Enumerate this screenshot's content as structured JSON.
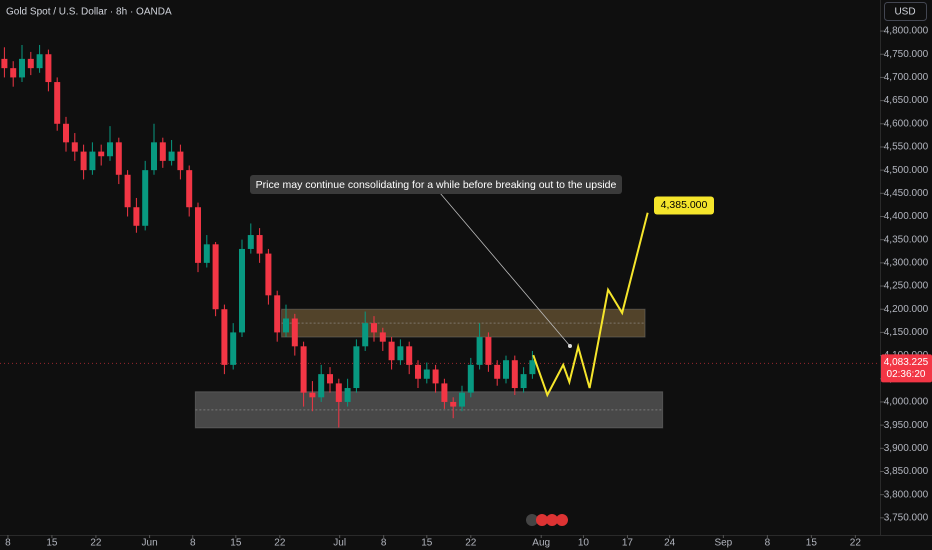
{
  "chart_data": {
    "type": "candlestick",
    "title": "Gold Spot / U.S. Dollar · 8h · OANDA",
    "currency": "USD",
    "xlim": [
      0,
      100
    ],
    "ylim": [
      3713,
      4867
    ],
    "xticks": [
      {
        "value": 0.9,
        "label": "8"
      },
      {
        "value": 5.9,
        "label": "15"
      },
      {
        "value": 10.9,
        "label": "22"
      },
      {
        "value": 17,
        "label": "Jun"
      },
      {
        "value": 21.9,
        "label": "8"
      },
      {
        "value": 26.8,
        "label": "15"
      },
      {
        "value": 31.8,
        "label": "22"
      },
      {
        "value": 38.6,
        "label": "Jul"
      },
      {
        "value": 43.6,
        "label": "8"
      },
      {
        "value": 48.5,
        "label": "15"
      },
      {
        "value": 53.5,
        "label": "22"
      },
      {
        "value": 61.5,
        "label": "Aug"
      },
      {
        "value": 66.3,
        "label": "10"
      },
      {
        "value": 71.3,
        "label": "17"
      },
      {
        "value": 76.1,
        "label": "24"
      },
      {
        "value": 82.2,
        "label": "Sep"
      },
      {
        "value": 87.2,
        "label": "8"
      },
      {
        "value": 92.2,
        "label": "15"
      },
      {
        "value": 97.2,
        "label": "22"
      }
    ],
    "yticks": [
      {
        "value": 3750,
        "label": "3,750.000"
      },
      {
        "value": 3800,
        "label": "3,800.000"
      },
      {
        "value": 3850,
        "label": "3,850.000"
      },
      {
        "value": 3900,
        "label": "3,900.000"
      },
      {
        "value": 3950,
        "label": "3,950.000"
      },
      {
        "value": 4000,
        "label": "4,000.000"
      },
      {
        "value": 4050,
        "label": "4,050.000"
      },
      {
        "value": 4100,
        "label": "4,100.000"
      },
      {
        "value": 4150,
        "label": "4,150.000"
      },
      {
        "value": 4200,
        "label": "4,200.000"
      },
      {
        "value": 4250,
        "label": "4,250.000"
      },
      {
        "value": 4300,
        "label": "4,300.000"
      },
      {
        "value": 4350,
        "label": "4,350.000"
      },
      {
        "value": 4400,
        "label": "4,400.000"
      },
      {
        "value": 4450,
        "label": "4,450.000"
      },
      {
        "value": 4500,
        "label": "4,500.000"
      },
      {
        "value": 4550,
        "label": "4,550.000"
      },
      {
        "value": 4600,
        "label": "4,600.000"
      },
      {
        "value": 4650,
        "label": "4,650.000"
      },
      {
        "value": 4700,
        "label": "4,700.000"
      },
      {
        "value": 4750,
        "label": "4,750.000"
      },
      {
        "value": 4800,
        "label": "4,800.000"
      }
    ],
    "up_color": "#089981",
    "down_color": "#f23645",
    "x": [
      0.5,
      1.5,
      2.5,
      3.5,
      4.5,
      5.5,
      6.5,
      7.5,
      8.5,
      9.5,
      10.5,
      11.5,
      12.5,
      13.5,
      14.5,
      15.5,
      16.5,
      17.5,
      18.5,
      19.5,
      20.5,
      21.5,
      22.5,
      23.5,
      24.5,
      25.5,
      26.5,
      27.5,
      28.5,
      29.5,
      30.5,
      31.5,
      32.5,
      33.5,
      34.5,
      35.5,
      36.5,
      37.5,
      38.5,
      39.5,
      40.5,
      41.5,
      42.5,
      43.5,
      44.5,
      45.5,
      46.5,
      47.5,
      48.5,
      49.5,
      50.5,
      51.5,
      52.5,
      53.5,
      54.5,
      55.5,
      56.5,
      57.5,
      58.5,
      59.5,
      60.5
    ],
    "open": [
      4740,
      4720,
      4700,
      4740,
      4720,
      4750,
      4690,
      4600,
      4560,
      4540,
      4500,
      4540,
      4530,
      4560,
      4490,
      4420,
      4380,
      4500,
      4560,
      4520,
      4540,
      4500,
      4420,
      4300,
      4340,
      4200,
      4080,
      4150,
      4330,
      4360,
      4320,
      4230,
      4150,
      4180,
      4120,
      4020,
      4010,
      4060,
      4040,
      4000,
      4030,
      4120,
      4170,
      4150,
      4130,
      4090,
      4120,
      4080,
      4050,
      4070,
      4040,
      4000,
      3990,
      4020,
      4080,
      4140,
      4080,
      4050,
      4090,
      4030,
      4060
    ],
    "high": [
      4765,
      4735,
      4770,
      4755,
      4770,
      4760,
      4700,
      4615,
      4580,
      4555,
      4560,
      4555,
      4595,
      4570,
      4500,
      4440,
      4520,
      4600,
      4570,
      4565,
      4555,
      4510,
      4430,
      4360,
      4345,
      4210,
      4170,
      4350,
      4385,
      4375,
      4330,
      4240,
      4210,
      4190,
      4130,
      4045,
      4080,
      4075,
      4050,
      4050,
      4135,
      4195,
      4185,
      4160,
      4140,
      4135,
      4130,
      4090,
      4085,
      4080,
      4050,
      4010,
      4035,
      4095,
      4170,
      4150,
      4090,
      4100,
      4100,
      4075,
      4110
    ],
    "low": [
      4700,
      4680,
      4690,
      4705,
      4710,
      4670,
      4585,
      4540,
      4520,
      4480,
      4490,
      4510,
      4520,
      4470,
      4400,
      4365,
      4370,
      4490,
      4505,
      4510,
      4480,
      4400,
      4280,
      4290,
      4185,
      4060,
      4070,
      4140,
      4320,
      4300,
      4210,
      4130,
      4140,
      4100,
      3990,
      3980,
      4000,
      4020,
      3945,
      3990,
      4020,
      4110,
      4130,
      4110,
      4070,
      4080,
      4060,
      4030,
      4040,
      4020,
      3985,
      3965,
      3980,
      4010,
      4070,
      4065,
      4035,
      4040,
      4015,
      4020,
      4050
    ],
    "close": [
      4720,
      4700,
      4740,
      4720,
      4750,
      4690,
      4600,
      4560,
      4540,
      4500,
      4540,
      4530,
      4560,
      4490,
      4420,
      4380,
      4500,
      4560,
      4520,
      4540,
      4500,
      4420,
      4300,
      4340,
      4200,
      4080,
      4150,
      4330,
      4360,
      4320,
      4230,
      4150,
      4180,
      4120,
      4020,
      4010,
      4060,
      4040,
      4000,
      4030,
      4120,
      4170,
      4150,
      4130,
      4090,
      4120,
      4080,
      4050,
      4070,
      4040,
      4000,
      3990,
      4020,
      4080,
      4140,
      4080,
      4050,
      4090,
      4030,
      4060,
      4090
    ],
    "zones": [
      {
        "x": [
          32,
          73.3
        ],
        "y": [
          4140,
          4200
        ],
        "color": "rgba(150,120,70,0.5)"
      },
      {
        "x": [
          22.2,
          75.3
        ],
        "y": [
          3944,
          4022
        ],
        "color": "rgba(120,120,120,0.55)"
      }
    ],
    "projection": {
      "x": [
        60.6,
        62.2,
        64,
        64.7,
        65.7,
        67,
        69.1,
        70.7,
        73.6
      ],
      "y": [
        4101,
        4015,
        4080,
        4043,
        4119,
        4030,
        4242,
        4192,
        4408
      ],
      "color": "#f5e52b"
    },
    "target": {
      "value": 4385,
      "label": "4,385.000"
    },
    "annotation": "Price may continue consolidating for a while before breaking out to the upside",
    "last_price": {
      "value": 4083.225,
      "label": "4,083.225",
      "countdown": "02:36:20"
    }
  }
}
